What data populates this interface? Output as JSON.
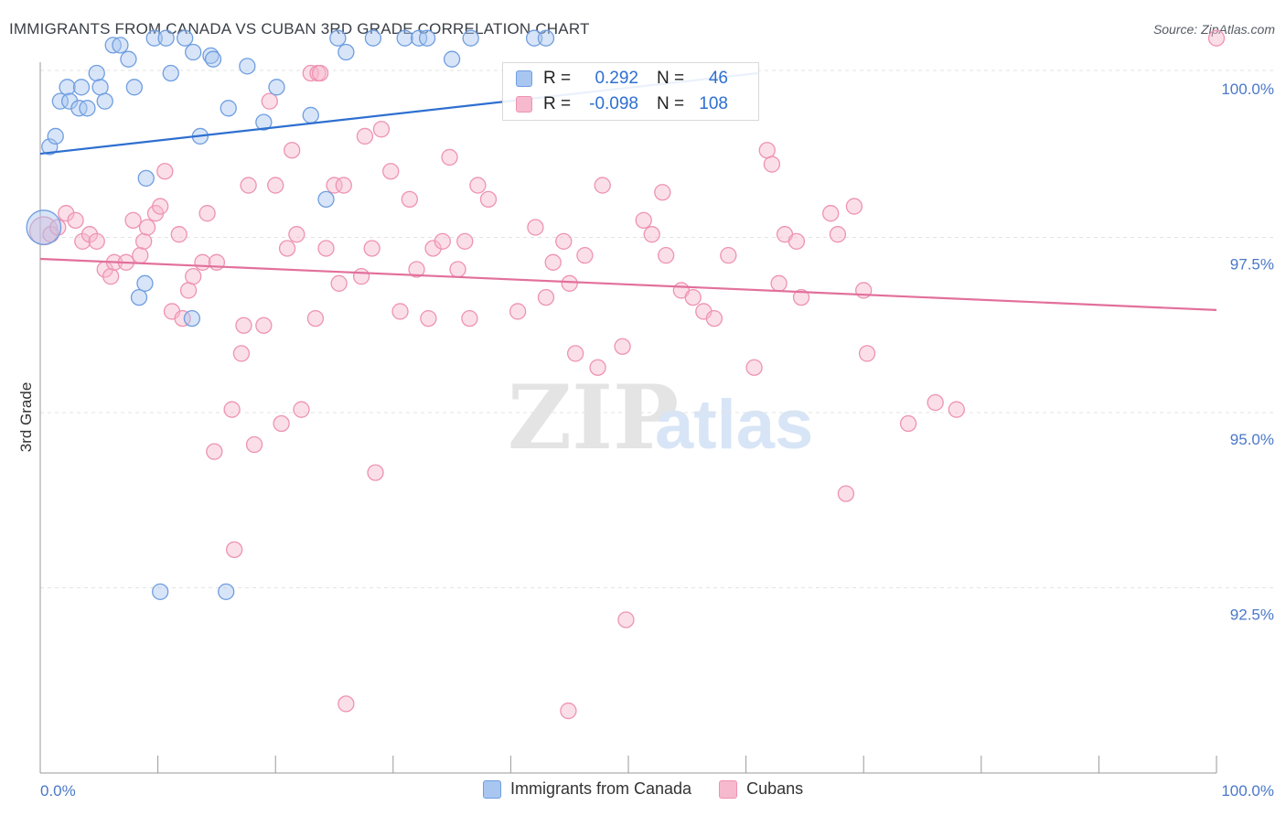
{
  "title": "IMMIGRANTS FROM CANADA VS CUBAN 3RD GRADE CORRELATION CHART",
  "source": "Source: ZipAtlas.com",
  "watermark": {
    "zip": "ZIP",
    "atlas": "atlas"
  },
  "colors": {
    "canada_fill": "#a8c6f0",
    "canada_stroke": "#6f9ee0",
    "canada_line": "#2e6fd0",
    "cuban_fill": "#f6b9cd",
    "cuban_stroke": "#ee93b2",
    "cuban_line": "#e2709b",
    "tick_label": "#4a78c8",
    "grid": "#e3e3e3"
  },
  "legend": {
    "rows": [
      {
        "r_label": "R =",
        "r_value": "0.292",
        "n_label": "N =",
        "n_value": "46"
      },
      {
        "r_label": "R =",
        "r_value": "-0.098",
        "n_label": "N =",
        "n_value": "108"
      }
    ]
  },
  "bottom_legend": {
    "series1": "Immigrants from Canada",
    "series2": "Cubans"
  },
  "chart_data": {
    "type": "scatter",
    "xlabel": "",
    "ylabel": "3rd Grade",
    "xlim": [
      0,
      100
    ],
    "ylim": [
      90.0,
      100.5
    ],
    "x_tick_labels": [
      "0.0%",
      "100.0%"
    ],
    "y_ticks": [
      92.5,
      95.0,
      97.5,
      100.0
    ],
    "y_tick_labels": [
      "92.5%",
      "95.0%",
      "97.5%",
      "100.0%"
    ],
    "grid": true,
    "legend_position": "top-center",
    "series": [
      {
        "name": "Immigrants from Canada",
        "trend": {
          "x": [
            0,
            61
          ],
          "y": [
            98.85,
            100.0
          ]
        },
        "points": [
          [
            0.3,
            97.8,
            2.2
          ],
          [
            0.8,
            98.95,
            1
          ],
          [
            1.3,
            99.1,
            1
          ],
          [
            1.7,
            99.6,
            1
          ],
          [
            2.3,
            99.8,
            1
          ],
          [
            2.5,
            99.6,
            1
          ],
          [
            3.3,
            99.5,
            1
          ],
          [
            3.5,
            99.8,
            1
          ],
          [
            4.0,
            99.5,
            1
          ],
          [
            4.8,
            100.0,
            1
          ],
          [
            5.1,
            99.8,
            1
          ],
          [
            5.5,
            99.6,
            1
          ],
          [
            6.2,
            100.4,
            1
          ],
          [
            6.8,
            100.4,
            1
          ],
          [
            7.5,
            100.2,
            1
          ],
          [
            8.0,
            99.8,
            1
          ],
          [
            9.7,
            100.5,
            1
          ],
          [
            10.7,
            100.5,
            1
          ],
          [
            11.1,
            100.0,
            1
          ],
          [
            12.3,
            100.5,
            1
          ],
          [
            13.0,
            100.3,
            1
          ],
          [
            13.6,
            99.1,
            1
          ],
          [
            14.5,
            100.25,
            1
          ],
          [
            14.7,
            100.2,
            1
          ],
          [
            16.0,
            99.5,
            1
          ],
          [
            17.6,
            100.1,
            1
          ],
          [
            19.0,
            99.3,
            1
          ],
          [
            20.1,
            99.8,
            1
          ],
          [
            23.0,
            99.4,
            1
          ],
          [
            24.3,
            98.2,
            1
          ],
          [
            25.3,
            100.5,
            1
          ],
          [
            26.0,
            100.3,
            1
          ],
          [
            28.3,
            100.5,
            1
          ],
          [
            31.0,
            100.5,
            1
          ],
          [
            32.2,
            100.5,
            1
          ],
          [
            32.9,
            100.5,
            1
          ],
          [
            35.0,
            100.2,
            1
          ],
          [
            36.6,
            100.5,
            1
          ],
          [
            42.0,
            100.5,
            1
          ],
          [
            43.0,
            100.5,
            1
          ],
          [
            8.4,
            96.8,
            1
          ],
          [
            8.9,
            97.0,
            1
          ],
          [
            9.0,
            98.5,
            1
          ],
          [
            10.2,
            92.6,
            1
          ],
          [
            12.9,
            96.5,
            1
          ],
          [
            15.8,
            92.6,
            1
          ]
        ]
      },
      {
        "name": "Cubans",
        "trend": {
          "x": [
            0,
            100
          ],
          "y": [
            97.35,
            96.62
          ]
        },
        "points": [
          [
            0.3,
            97.75,
            1.8
          ],
          [
            0.9,
            97.7,
            1
          ],
          [
            1.5,
            97.8,
            1
          ],
          [
            2.2,
            98.0,
            1
          ],
          [
            3.0,
            97.9,
            1
          ],
          [
            3.6,
            97.6,
            1
          ],
          [
            4.2,
            97.7,
            1
          ],
          [
            4.8,
            97.6,
            1
          ],
          [
            5.5,
            97.2,
            1
          ],
          [
            6.0,
            97.1,
            1
          ],
          [
            6.3,
            97.3,
            1
          ],
          [
            7.3,
            97.3,
            1
          ],
          [
            7.9,
            97.9,
            1
          ],
          [
            8.5,
            97.4,
            1
          ],
          [
            8.8,
            97.6,
            1
          ],
          [
            9.1,
            97.8,
            1
          ],
          [
            9.8,
            98.0,
            1
          ],
          [
            10.2,
            98.1,
            1
          ],
          [
            10.6,
            98.6,
            1
          ],
          [
            11.2,
            96.6,
            1
          ],
          [
            11.8,
            97.7,
            1
          ],
          [
            12.1,
            96.5,
            1
          ],
          [
            12.6,
            96.9,
            1
          ],
          [
            13.0,
            97.1,
            1
          ],
          [
            13.8,
            97.3,
            1
          ],
          [
            14.2,
            98.0,
            1
          ],
          [
            15.0,
            97.3,
            1
          ],
          [
            16.3,
            95.2,
            1
          ],
          [
            17.1,
            96.0,
            1
          ],
          [
            17.7,
            98.4,
            1
          ],
          [
            18.2,
            94.7,
            1
          ],
          [
            19.0,
            96.4,
            1
          ],
          [
            19.5,
            99.6,
            1
          ],
          [
            20.0,
            98.4,
            1
          ],
          [
            20.5,
            95.0,
            1
          ],
          [
            21.0,
            97.5,
            1
          ],
          [
            21.4,
            98.9,
            1
          ],
          [
            21.8,
            97.7,
            1
          ],
          [
            22.2,
            95.2,
            1
          ],
          [
            23.0,
            100.0,
            1
          ],
          [
            23.4,
            96.5,
            1
          ],
          [
            23.6,
            100.0,
            1
          ],
          [
            24.3,
            97.5,
            1
          ],
          [
            25.0,
            98.4,
            1
          ],
          [
            25.4,
            97.0,
            1
          ],
          [
            25.8,
            98.4,
            1
          ],
          [
            27.3,
            97.1,
            1
          ],
          [
            27.6,
            99.1,
            1
          ],
          [
            28.2,
            97.5,
            1
          ],
          [
            28.5,
            94.3,
            1
          ],
          [
            29.0,
            99.2,
            1
          ],
          [
            29.8,
            98.6,
            1
          ],
          [
            30.6,
            96.6,
            1
          ],
          [
            31.4,
            98.2,
            1
          ],
          [
            32.0,
            97.2,
            1
          ],
          [
            33.0,
            96.5,
            1
          ],
          [
            33.4,
            97.5,
            1
          ],
          [
            34.2,
            97.6,
            1
          ],
          [
            34.8,
            98.8,
            1
          ],
          [
            35.5,
            97.2,
            1
          ],
          [
            36.1,
            97.6,
            1
          ],
          [
            36.5,
            96.5,
            1
          ],
          [
            37.2,
            98.4,
            1
          ],
          [
            38.1,
            98.2,
            1
          ],
          [
            40.6,
            96.6,
            1
          ],
          [
            42.1,
            97.8,
            1
          ],
          [
            43.0,
            96.8,
            1
          ],
          [
            43.6,
            97.3,
            1
          ],
          [
            44.5,
            97.6,
            1
          ],
          [
            45.0,
            97.0,
            1
          ],
          [
            45.5,
            96.0,
            1
          ],
          [
            46.3,
            97.4,
            1
          ],
          [
            47.4,
            95.8,
            1
          ],
          [
            47.8,
            98.4,
            1
          ],
          [
            49.5,
            96.1,
            1
          ],
          [
            49.8,
            92.2,
            1
          ],
          [
            51.3,
            97.9,
            1
          ],
          [
            52.0,
            97.7,
            1
          ],
          [
            52.9,
            98.3,
            1
          ],
          [
            53.2,
            97.4,
            1
          ],
          [
            54.5,
            96.9,
            1
          ],
          [
            55.5,
            96.8,
            1
          ],
          [
            56.4,
            96.6,
            1
          ],
          [
            57.3,
            96.5,
            1
          ],
          [
            58.5,
            97.4,
            1
          ],
          [
            60.7,
            95.8,
            1
          ],
          [
            61.8,
            98.9,
            1
          ],
          [
            62.2,
            98.7,
            1
          ],
          [
            62.8,
            97.0,
            1
          ],
          [
            63.3,
            97.7,
            1
          ],
          [
            64.3,
            97.6,
            1
          ],
          [
            64.7,
            96.8,
            1
          ],
          [
            67.2,
            98.0,
            1
          ],
          [
            67.8,
            97.7,
            1
          ],
          [
            68.5,
            94.0,
            1
          ],
          [
            69.2,
            98.1,
            1
          ],
          [
            70.0,
            96.9,
            1
          ],
          [
            70.3,
            96.0,
            1
          ],
          [
            73.8,
            95.0,
            1
          ],
          [
            76.1,
            95.3,
            1
          ],
          [
            77.9,
            95.2,
            1
          ],
          [
            100.0,
            100.5,
            1
          ],
          [
            16.5,
            93.2,
            1
          ],
          [
            26.0,
            91.0,
            1
          ],
          [
            44.9,
            90.9,
            1
          ],
          [
            14.8,
            94.6,
            1
          ],
          [
            17.3,
            96.4,
            1
          ],
          [
            23.8,
            100.0,
            1
          ]
        ]
      }
    ]
  }
}
